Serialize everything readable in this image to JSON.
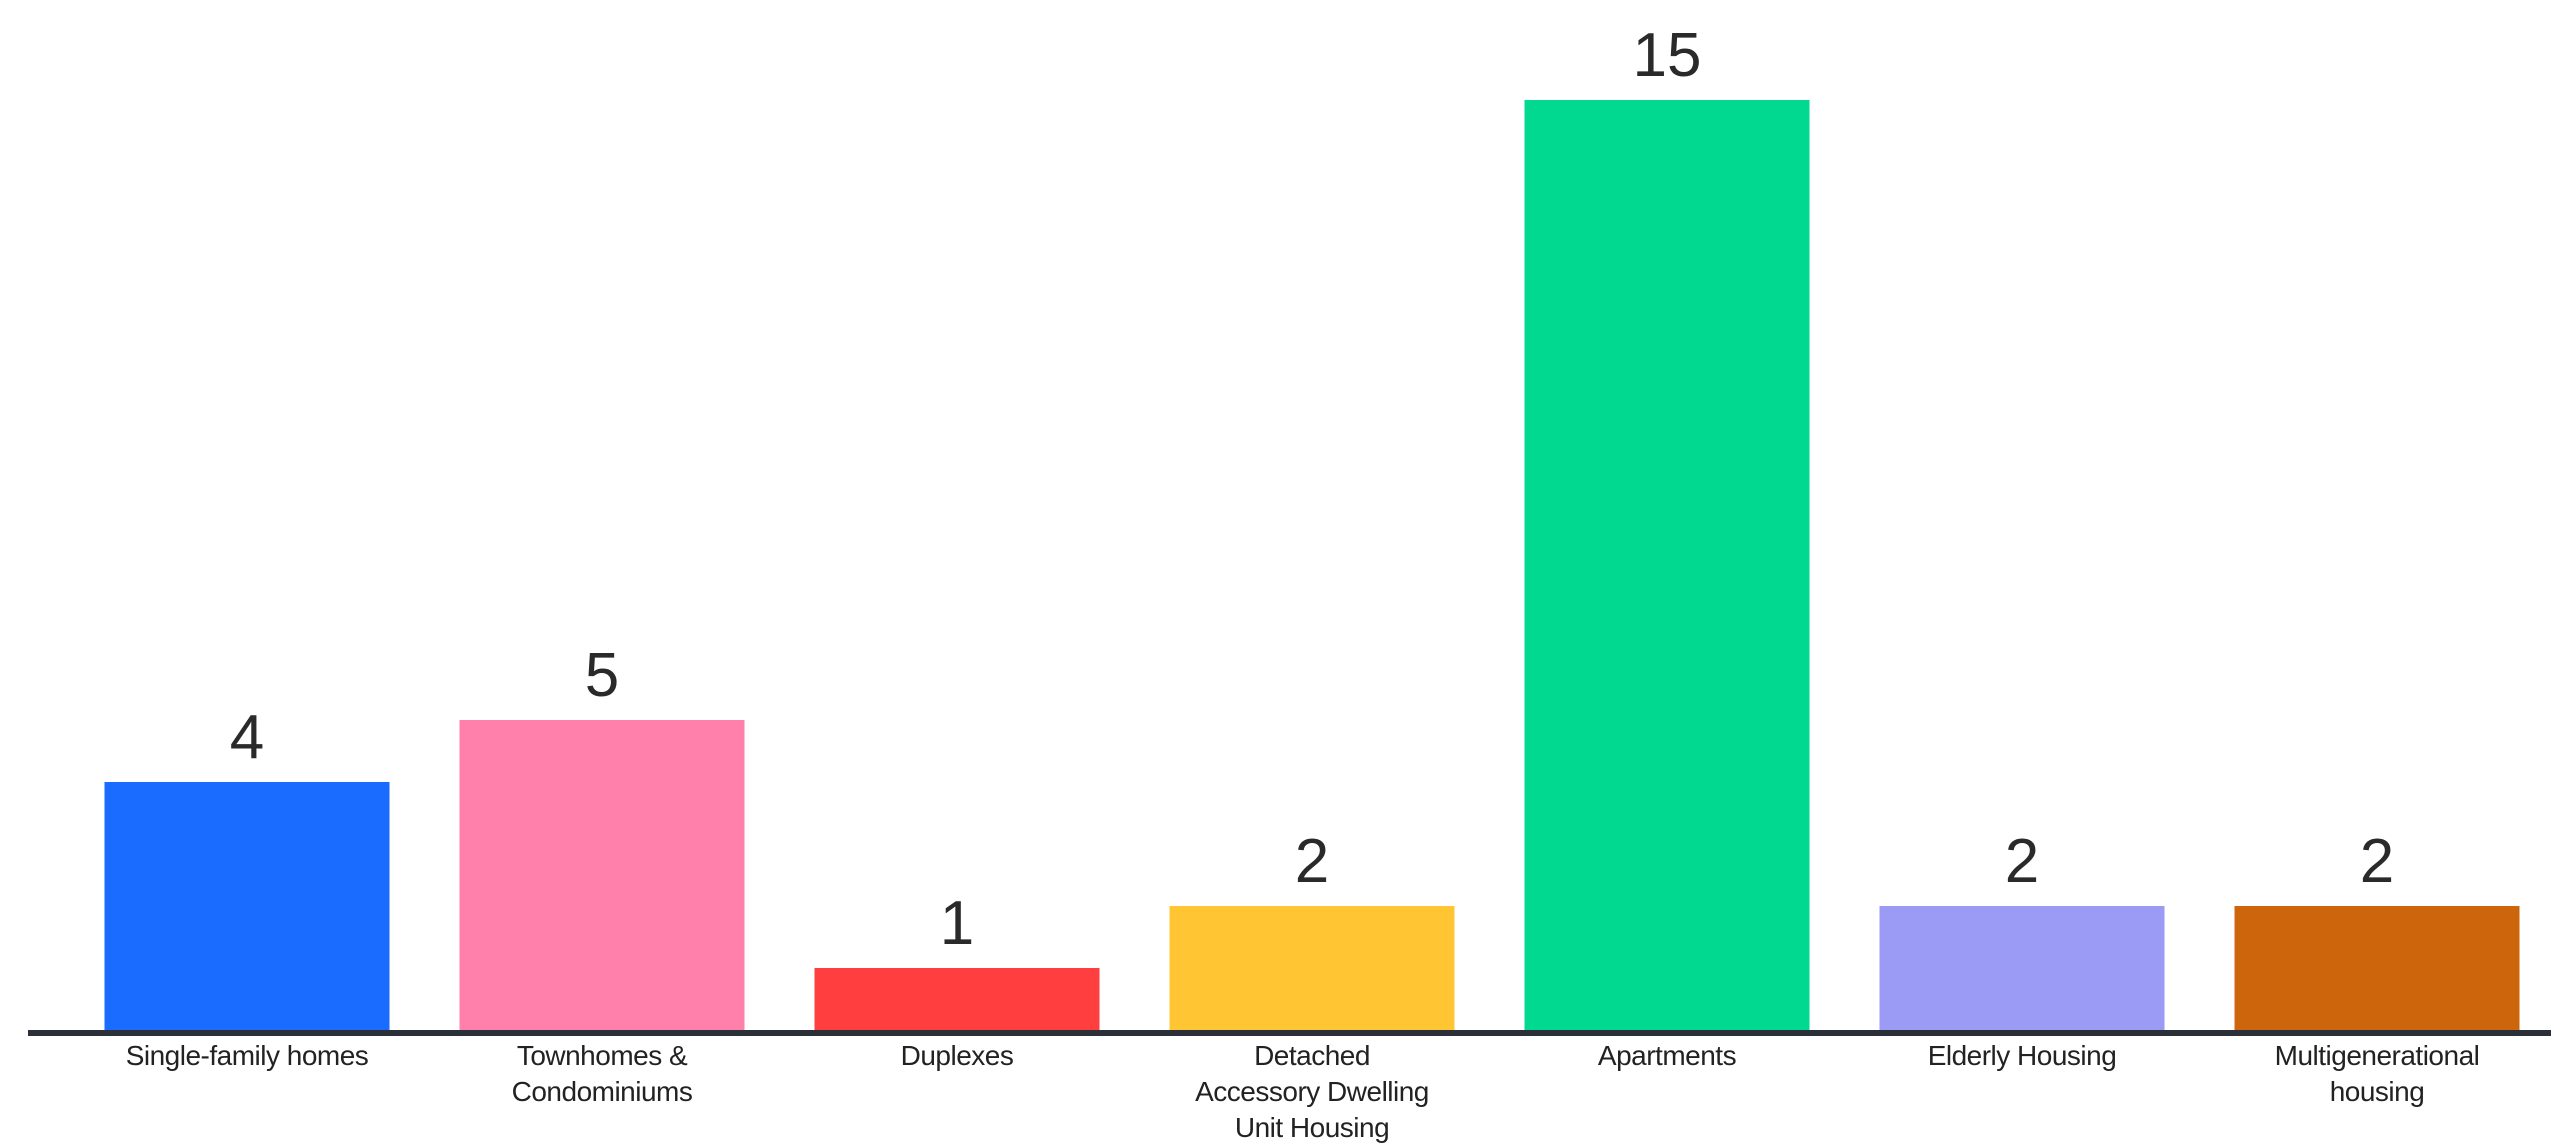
{
  "chart_data": {
    "type": "bar",
    "categories": [
      "Single-family homes",
      "Townhomes & Condominiums",
      "Duplexes",
      "Detached Accessory Dwelling Unit Housing",
      "Apartments",
      "Elderly Housing",
      "Multigenerational housing"
    ],
    "category_label_lines": [
      [
        "Single-family homes"
      ],
      [
        "Townhomes &",
        "Condominiums"
      ],
      [
        "Duplexes"
      ],
      [
        "Detached",
        "Accessory Dwelling",
        "Unit Housing"
      ],
      [
        "Apartments"
      ],
      [
        "Elderly Housing"
      ],
      [
        "Multigenerational",
        "housing"
      ]
    ],
    "values": [
      4,
      5,
      1,
      2,
      15,
      2,
      2
    ],
    "data_labels": [
      "4",
      "5",
      "1",
      "2",
      "15",
      "2",
      "2"
    ],
    "colors": [
      "#1a6bff",
      "#ff80aa",
      "#ff3f3f",
      "#ffc533",
      "#00d98f",
      "#9b9af5",
      "#cc650c"
    ],
    "axis_color": "#2b2f38",
    "ylim": [
      0,
      15
    ],
    "grid": false,
    "legend": "none",
    "title": "",
    "xlabel": "",
    "ylabel": ""
  }
}
